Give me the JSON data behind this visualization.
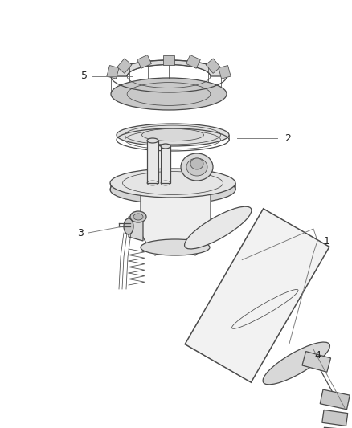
{
  "bg_color": "#ffffff",
  "lc": "#4a4a4a",
  "lc_light": "#888888",
  "lw": 0.9,
  "lw_thin": 0.55,
  "lw_thick": 1.1,
  "figsize": [
    4.38,
    5.33
  ],
  "dpi": 100,
  "label_fs": 9,
  "label_color": "#222222"
}
